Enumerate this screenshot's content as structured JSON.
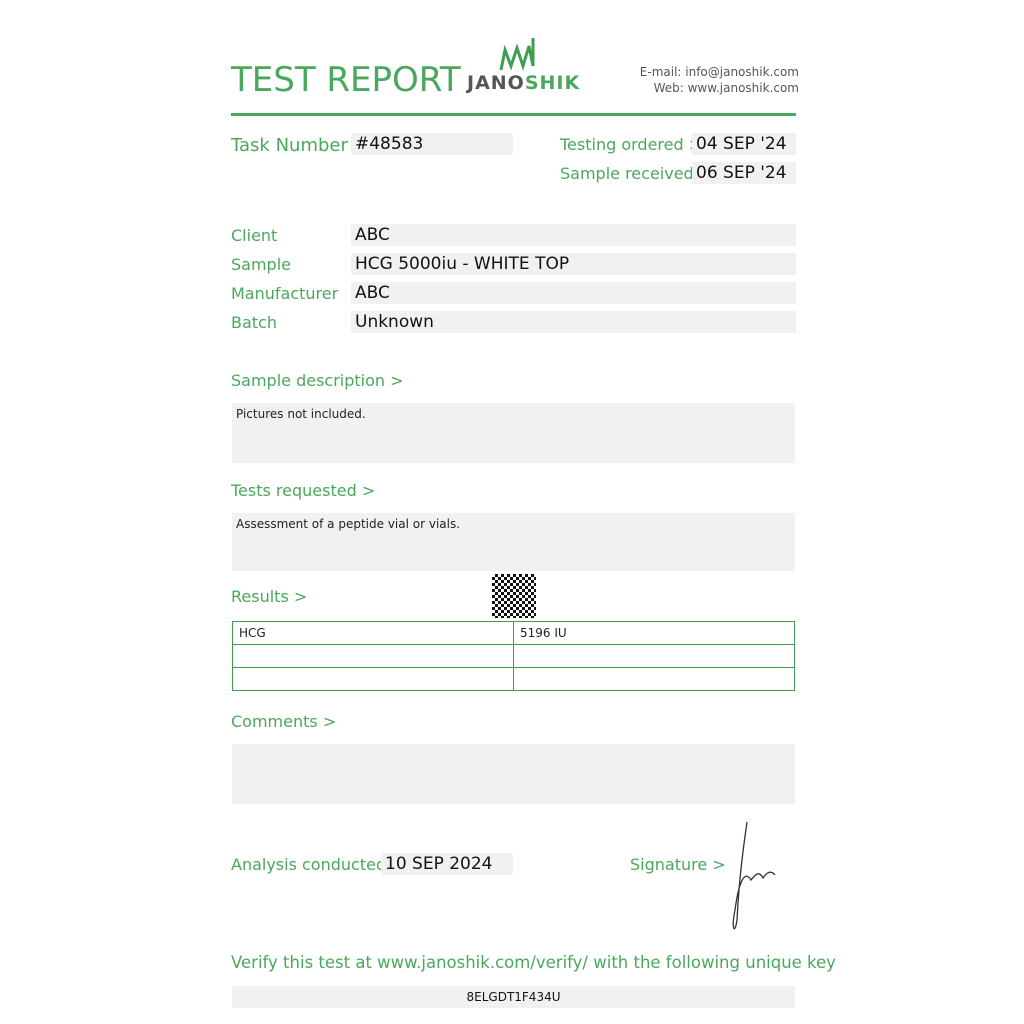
{
  "header": {
    "title": "TEST REPORT",
    "logo_text": "JANOSHIK",
    "email": "E-mail: info@janoshik.com",
    "web": "Web: www.janoshik.com"
  },
  "task": {
    "label": "Task Number",
    "value": "#48583"
  },
  "dates": {
    "ordered_label": "Testing ordered  >",
    "ordered": "04 SEP '24",
    "received_label": "Sample received >",
    "received": "06 SEP '24"
  },
  "fields": [
    {
      "label": "Client",
      "value": "ABC"
    },
    {
      "label": "Sample",
      "value": "HCG 5000iu - WHITE TOP"
    },
    {
      "label": "Manufacturer",
      "value": "ABC"
    },
    {
      "label": "Batch",
      "value": "Unknown"
    }
  ],
  "sample_description": {
    "label": "Sample description >",
    "text": "Pictures not included."
  },
  "tests_requested": {
    "label": "Tests requested >",
    "text": "Assessment of a peptide vial or vials."
  },
  "results": {
    "label": "Results >",
    "rows": [
      [
        "HCG",
        "5196 IU"
      ],
      [
        "",
        ""
      ],
      [
        "",
        ""
      ]
    ]
  },
  "comments": {
    "label": "Comments >",
    "text": ""
  },
  "analysis": {
    "label": "Analysis conducted >",
    "date": "10 SEP 2024"
  },
  "signature": {
    "label": "Signature >"
  },
  "verify": {
    "text": "Verify this test at www.janoshik.com/verify/ with the following unique key",
    "key": "8ELGDT1F434U"
  },
  "colors": {
    "accent": "#4aa85c",
    "box": "#f1f1f1"
  }
}
